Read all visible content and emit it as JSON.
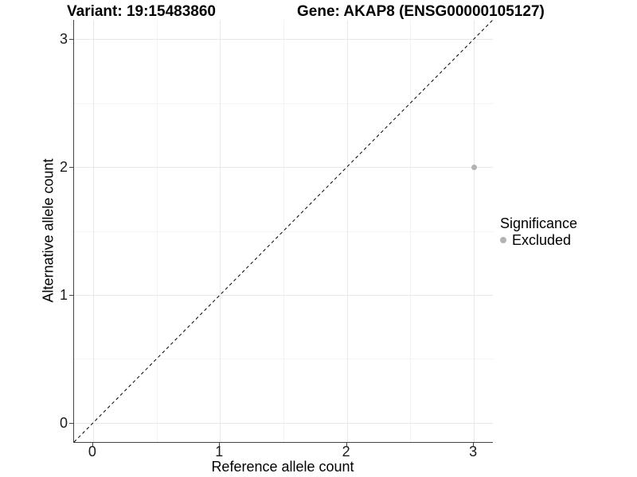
{
  "titles": {
    "left": "Variant: 19:15483860",
    "right": "Gene: AKAP8 (ENSG00000105127)"
  },
  "legend": {
    "title": "Significance",
    "entries": [
      {
        "label": "Excluded",
        "color": "#b3b3b3"
      }
    ]
  },
  "colors": {
    "axis_line": "#444444",
    "grid_major": "#e8e8e8",
    "grid_minor": "#f3f3f3",
    "point": "#b3b3b3",
    "identity_line": "#000000"
  },
  "chart_data": {
    "type": "scatter",
    "title": "Variant: 19:15483860 / Gene: AKAP8 (ENSG00000105127)",
    "xlabel": "Reference allele count",
    "ylabel": "Alternative allele count",
    "xlim": [
      -0.15,
      3.15
    ],
    "ylim": [
      -0.15,
      3.15
    ],
    "xticks": [
      0,
      1,
      2,
      3
    ],
    "yticks": [
      0,
      1,
      2,
      3
    ],
    "minor_ticks": [
      0.5,
      1.5,
      2.5
    ],
    "grid": true,
    "legend_position": "right",
    "identity_line": {
      "style": "dashed",
      "from": [
        -0.15,
        -0.15
      ],
      "to": [
        3.15,
        3.15
      ]
    },
    "series": [
      {
        "name": "Excluded",
        "color": "#b3b3b3",
        "points": [
          {
            "x": 3,
            "y": 2
          }
        ]
      }
    ]
  }
}
